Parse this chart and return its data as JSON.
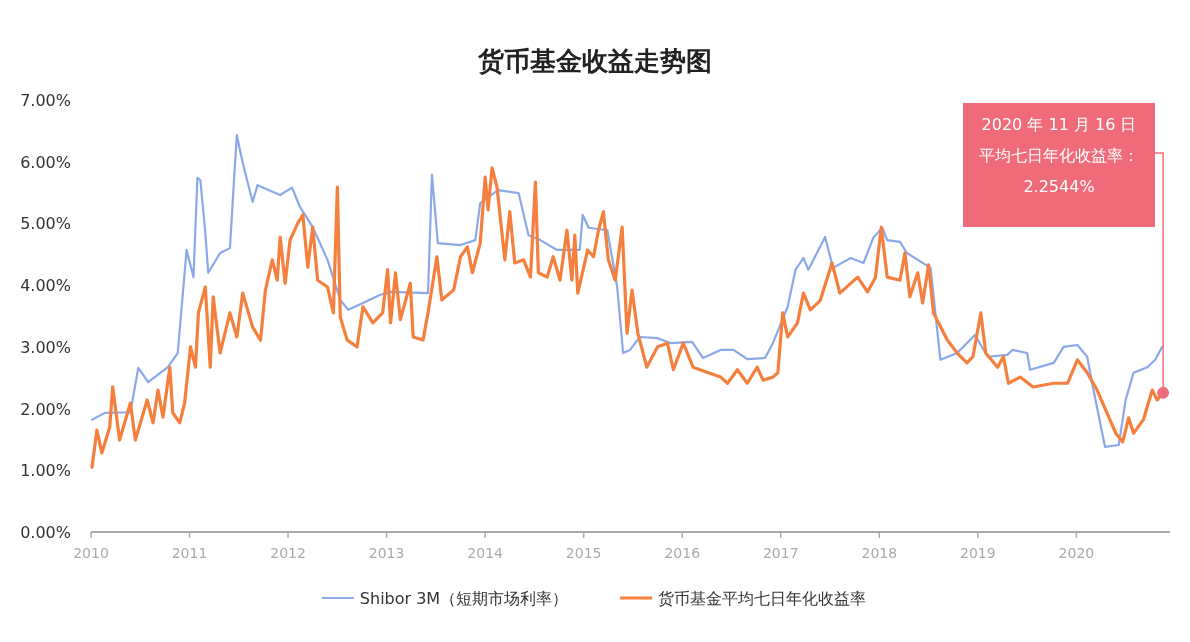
{
  "chart_data": {
    "type": "line",
    "title": "货币基金收益走势图",
    "xlim": [
      2010,
      2020.95
    ],
    "xticks": [
      2010,
      2011,
      2012,
      2013,
      2014,
      2015,
      2016,
      2017,
      2018,
      2019,
      2020
    ],
    "ylim": [
      0,
      7
    ],
    "yticks": [
      {
        "value": 0,
        "label": "0.00%"
      },
      {
        "value": 1,
        "label": "1.00%"
      },
      {
        "value": 2,
        "label": "2.00%"
      },
      {
        "value": 3,
        "label": "3.00%"
      },
      {
        "value": 4,
        "label": "4.00%"
      },
      {
        "value": 5,
        "label": "5.00%"
      },
      {
        "value": 6,
        "label": "6.00%"
      },
      {
        "value": 7,
        "label": "7.00%"
      }
    ],
    "grid": false,
    "legend": "bottom",
    "series": [
      {
        "name": "Shibor 3M（短期市场利率）",
        "color": "#8aa8ea",
        "x": [
          2010.01,
          2010.14,
          2010.4,
          2010.48,
          2010.58,
          2010.78,
          2010.88,
          2010.97,
          2011.04,
          2011.08,
          2011.11,
          2011.16,
          2011.19,
          2011.31,
          2011.41,
          2011.45,
          2011.48,
          2011.54,
          2011.64,
          2011.69,
          2011.92,
          2012.04,
          2012.12,
          2012.25,
          2012.4,
          2012.53,
          2012.61,
          2012.76,
          2012.93,
          2013.04,
          2013.42,
          2013.46,
          2013.52,
          2013.75,
          2013.9,
          2013.95,
          2014.13,
          2014.34,
          2014.44,
          2014.56,
          2014.73,
          2014.96,
          2014.99,
          2015.05,
          2015.24,
          2015.34,
          2015.4,
          2015.47,
          2015.57,
          2015.75,
          2015.88,
          2016.1,
          2016.21,
          2016.39,
          2016.52,
          2016.66,
          2016.84,
          2016.92,
          2017.07,
          2017.15,
          2017.23,
          2017.28,
          2017.45,
          2017.53,
          2017.71,
          2017.84,
          2017.94,
          2018.03,
          2018.08,
          2018.21,
          2018.28,
          2018.44,
          2018.52,
          2018.62,
          2018.79,
          2018.97,
          2019.1,
          2019.3,
          2019.35,
          2019.5,
          2019.53,
          2019.77,
          2019.87,
          2020.01,
          2020.11,
          2020.16,
          2020.29,
          2020.43,
          2020.5,
          2020.58,
          2020.72,
          2020.8,
          2020.87
        ],
        "values": [
          1.82,
          1.93,
          1.94,
          2.66,
          2.43,
          2.67,
          2.9,
          4.57,
          4.13,
          5.74,
          5.7,
          4.85,
          4.2,
          4.52,
          4.6,
          5.67,
          6.43,
          5.98,
          5.35,
          5.62,
          5.46,
          5.58,
          5.27,
          4.94,
          4.41,
          3.76,
          3.6,
          3.71,
          3.84,
          3.89,
          3.87,
          5.79,
          4.68,
          4.65,
          4.73,
          5.33,
          5.54,
          5.49,
          4.81,
          4.73,
          4.57,
          4.57,
          5.14,
          4.93,
          4.89,
          3.97,
          2.9,
          2.95,
          3.16,
          3.14,
          3.06,
          3.08,
          2.82,
          2.95,
          2.95,
          2.8,
          2.82,
          3.06,
          3.65,
          4.25,
          4.44,
          4.25,
          4.78,
          4.28,
          4.44,
          4.36,
          4.77,
          4.93,
          4.73,
          4.7,
          4.52,
          4.36,
          4.28,
          2.79,
          2.9,
          3.19,
          2.84,
          2.87,
          2.95,
          2.9,
          2.63,
          2.74,
          3.0,
          3.03,
          2.84,
          2.41,
          1.38,
          1.41,
          2.14,
          2.58,
          2.67,
          2.79,
          3.0
        ]
      },
      {
        "name": "货币基金平均七日年化收益率",
        "color": "#f57f3c",
        "x": [
          2010.01,
          2010.06,
          2010.11,
          2010.19,
          2010.22,
          2010.29,
          2010.4,
          2010.45,
          2010.57,
          2010.63,
          2010.68,
          2010.73,
          2010.8,
          2010.83,
          2010.9,
          2010.95,
          2011.01,
          2011.06,
          2011.09,
          2011.16,
          2011.21,
          2011.24,
          2011.31,
          2011.41,
          2011.48,
          2011.54,
          2011.64,
          2011.72,
          2011.77,
          2011.84,
          2011.89,
          2011.92,
          2011.97,
          2012.02,
          2012.1,
          2012.15,
          2012.2,
          2012.25,
          2012.3,
          2012.4,
          2012.46,
          2012.5,
          2012.53,
          2012.56,
          2012.6,
          2012.7,
          2012.76,
          2012.86,
          2012.96,
          2013.01,
          2013.04,
          2013.09,
          2013.14,
          2013.24,
          2013.27,
          2013.37,
          2013.42,
          2013.51,
          2013.56,
          2013.68,
          2013.75,
          2013.82,
          2013.87,
          2013.95,
          2014.0,
          2014.03,
          2014.07,
          2014.12,
          2014.2,
          2014.25,
          2014.3,
          2014.39,
          2014.46,
          2014.51,
          2014.54,
          2014.63,
          2014.69,
          2014.76,
          2014.83,
          2014.88,
          2014.91,
          2014.94,
          2015.04,
          2015.1,
          2015.15,
          2015.2,
          2015.25,
          2015.32,
          2015.39,
          2015.44,
          2015.49,
          2015.55,
          2015.64,
          2015.75,
          2015.85,
          2015.91,
          2016.01,
          2016.11,
          2016.25,
          2016.39,
          2016.46,
          2016.56,
          2016.66,
          2016.76,
          2016.82,
          2016.92,
          2016.97,
          2017.02,
          2017.07,
          2017.17,
          2017.23,
          2017.3,
          2017.4,
          2017.52,
          2017.6,
          2017.78,
          2017.88,
          2017.96,
          2018.02,
          2018.08,
          2018.21,
          2018.26,
          2018.31,
          2018.39,
          2018.44,
          2018.5,
          2018.55,
          2018.69,
          2018.79,
          2018.89,
          2018.95,
          2019.03,
          2019.08,
          2019.2,
          2019.26,
          2019.31,
          2019.43,
          2019.56,
          2019.77,
          2019.91,
          2020.01,
          2020.11,
          2020.21,
          2020.31,
          2020.4,
          2020.47,
          2020.53,
          2020.58,
          2020.68,
          2020.77,
          2020.82,
          2020.88
        ],
        "values": [
          1.05,
          1.65,
          1.28,
          1.7,
          2.35,
          1.49,
          2.09,
          1.49,
          2.14,
          1.77,
          2.3,
          1.86,
          2.67,
          1.93,
          1.77,
          2.09,
          3.0,
          2.67,
          3.55,
          3.97,
          2.67,
          3.81,
          2.9,
          3.55,
          3.16,
          3.87,
          3.32,
          3.11,
          3.92,
          4.41,
          4.08,
          4.78,
          4.03,
          4.73,
          5.01,
          5.14,
          4.29,
          4.94,
          4.08,
          3.97,
          3.55,
          5.59,
          3.48,
          3.32,
          3.11,
          3.0,
          3.65,
          3.39,
          3.55,
          4.25,
          3.39,
          4.2,
          3.44,
          4.03,
          3.16,
          3.11,
          3.55,
          4.46,
          3.76,
          3.92,
          4.46,
          4.62,
          4.2,
          4.68,
          5.75,
          5.22,
          5.9,
          5.59,
          4.41,
          5.19,
          4.36,
          4.41,
          4.13,
          5.67,
          4.2,
          4.13,
          4.46,
          4.08,
          4.89,
          4.08,
          4.81,
          3.87,
          4.57,
          4.46,
          4.89,
          5.19,
          4.41,
          4.08,
          4.94,
          3.22,
          3.92,
          3.22,
          2.67,
          3.0,
          3.06,
          2.63,
          3.06,
          2.67,
          2.59,
          2.51,
          2.41,
          2.63,
          2.41,
          2.67,
          2.46,
          2.51,
          2.58,
          3.55,
          3.16,
          3.39,
          3.87,
          3.6,
          3.75,
          4.36,
          3.87,
          4.13,
          3.89,
          4.12,
          4.94,
          4.13,
          4.08,
          4.52,
          3.81,
          4.2,
          3.71,
          4.33,
          3.55,
          3.11,
          2.9,
          2.74,
          2.84,
          3.55,
          2.9,
          2.67,
          2.84,
          2.41,
          2.51,
          2.35,
          2.41,
          2.41,
          2.79,
          2.58,
          2.3,
          1.93,
          1.6,
          1.46,
          1.85,
          1.6,
          1.82,
          2.3,
          2.14,
          2.2544
        ]
      }
    ],
    "annotations": [
      "2020 年 11 月 16 日",
      {
        "text": "平均七日年化收益率：",
        "x": 2020.88,
        "y": 2.2544
      },
      "2.2544%"
    ]
  }
}
